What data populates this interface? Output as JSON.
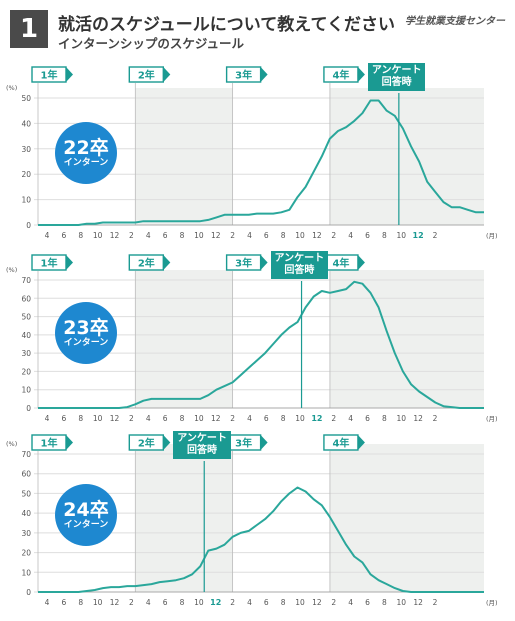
{
  "header": {
    "number": "1",
    "title": "就活のスケジュールについて教えてください",
    "subtitle": "インターンシップのスケジュール",
    "brand": "学生就業支援センター"
  },
  "colors": {
    "line": "#2aa79b",
    "marker": "#1a9a92",
    "badge": "#1e88d0",
    "shade": "#eef0ee",
    "grid": "#dedede"
  },
  "year_labels": [
    "1年",
    "2年",
    "3年",
    "4年"
  ],
  "answer_label": [
    "アンケート",
    "回答時"
  ],
  "unit_pct": "(%)",
  "unit_month": "(月)",
  "chart_data": [
    {
      "type": "line",
      "title": "22卒 インターン",
      "badge_top": "22卒",
      "badge_bottom": "インターン",
      "ylim": [
        0,
        50
      ],
      "yticks": [
        0,
        10,
        20,
        30,
        40,
        50
      ],
      "x_tick_labels": [
        "4",
        "6",
        "8",
        "10",
        "12",
        "2",
        "4",
        "6",
        "8",
        "10",
        "12",
        "2",
        "4",
        "6",
        "8",
        "10",
        "12",
        "2",
        "4",
        "6",
        "8",
        "10",
        "12",
        "2"
      ],
      "highlight_tick": 22,
      "survey_month_index": 44.5,
      "values": [
        0,
        0,
        0,
        0,
        0,
        0,
        0.5,
        0.5,
        1,
        1,
        1,
        1,
        1,
        1.5,
        1.5,
        1.5,
        1.5,
        1.5,
        1.5,
        1.5,
        1.5,
        2,
        3,
        4,
        4,
        4,
        4,
        4.5,
        4.5,
        4.5,
        5,
        6,
        11,
        15,
        21,
        27,
        34,
        37,
        38.5,
        41,
        44,
        49,
        49,
        45,
        43,
        38,
        31,
        25,
        17,
        13,
        9,
        7,
        7,
        6,
        5,
        5
      ]
    },
    {
      "type": "line",
      "title": "23卒 インターン",
      "badge_top": "23卒",
      "badge_bottom": "インターン",
      "ylim": [
        0,
        70
      ],
      "yticks": [
        0,
        10,
        20,
        30,
        40,
        50,
        60,
        70
      ],
      "x_tick_labels": [
        "4",
        "6",
        "8",
        "10",
        "12",
        "2",
        "4",
        "6",
        "8",
        "10",
        "12",
        "2",
        "4",
        "6",
        "8",
        "10",
        "12",
        "2",
        "4",
        "6",
        "8",
        "10",
        "12",
        "2"
      ],
      "highlight_tick": 16,
      "survey_month_index": 32.5,
      "values": [
        0,
        0,
        0,
        0,
        0,
        0,
        0,
        0,
        0,
        0,
        0,
        0.5,
        2,
        4,
        5,
        5,
        5,
        5,
        5,
        5,
        5,
        7,
        10,
        12,
        14,
        18,
        22,
        26,
        30,
        35,
        40,
        44,
        47,
        55,
        61,
        64,
        63,
        64,
        65,
        69,
        68,
        63,
        55,
        42,
        30,
        20,
        13,
        9,
        6,
        3,
        1,
        0.5,
        0,
        0,
        0,
        0
      ]
    },
    {
      "type": "line",
      "title": "24卒 インターン",
      "badge_top": "24卒",
      "badge_bottom": "インターン",
      "ylim": [
        0,
        70
      ],
      "yticks": [
        0,
        10,
        20,
        30,
        40,
        50,
        60,
        70
      ],
      "x_tick_labels": [
        "4",
        "6",
        "8",
        "10",
        "12",
        "2",
        "4",
        "6",
        "8",
        "10",
        "12",
        "2",
        "4",
        "6",
        "8",
        "10",
        "12",
        "2",
        "4",
        "6",
        "8",
        "10",
        "12",
        "2"
      ],
      "highlight_tick": 10,
      "survey_month_index": 20.5,
      "values": [
        0,
        0,
        0,
        0,
        0,
        0,
        0.5,
        1,
        2,
        2.5,
        2.5,
        3,
        3,
        3.5,
        4,
        5,
        5.5,
        6,
        7,
        9,
        13,
        21,
        22,
        24,
        28,
        30,
        31,
        34,
        37,
        41,
        46,
        50,
        53,
        51,
        47,
        44,
        38,
        31,
        24,
        18,
        15,
        9,
        6,
        4,
        2,
        0.5,
        0,
        0,
        0,
        0,
        0,
        0,
        0,
        0,
        0,
        0
      ]
    }
  ]
}
